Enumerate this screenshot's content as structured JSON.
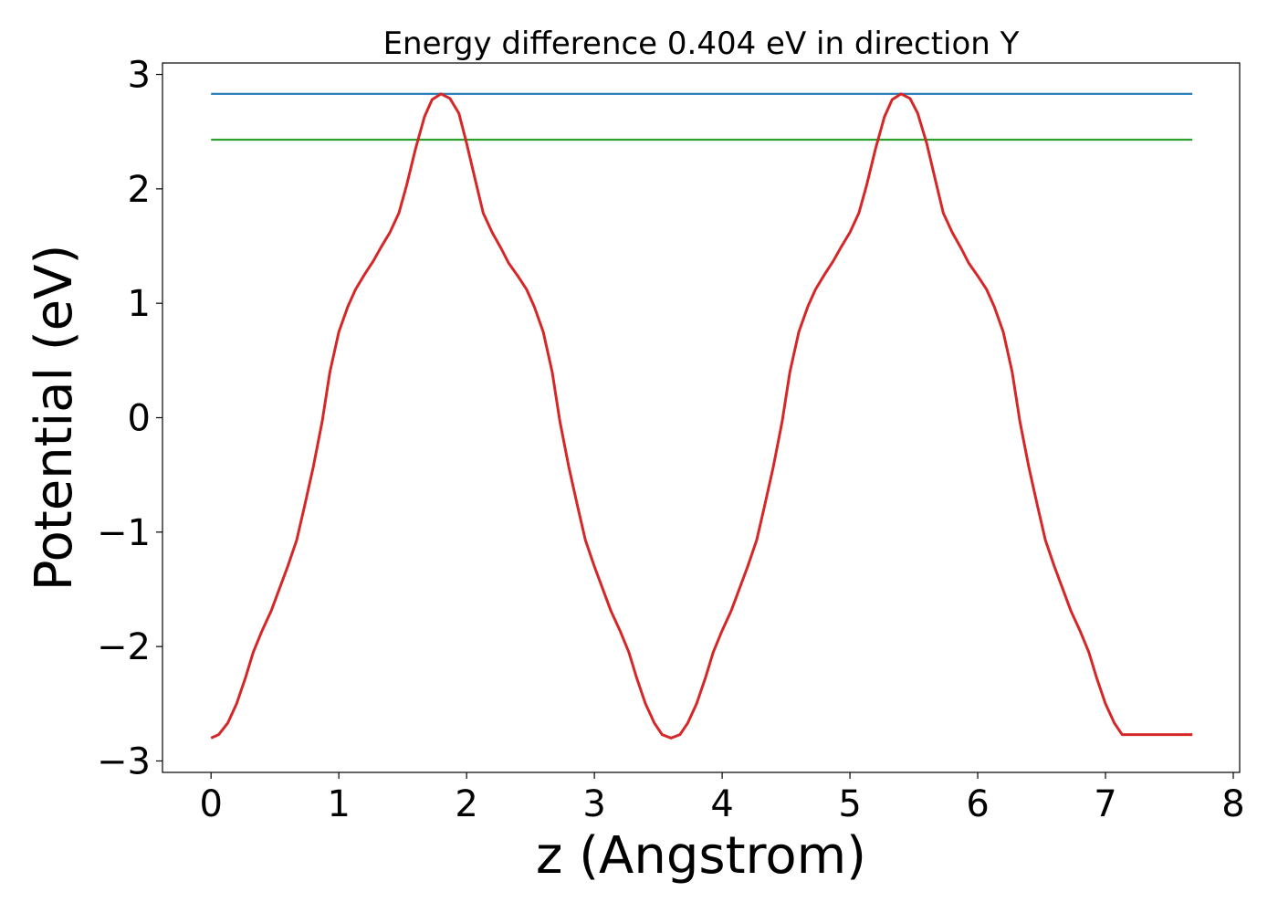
{
  "chart_data": {
    "type": "line",
    "title": "Energy difference 0.404 eV in direction Y",
    "xlabel": "z (Angstrom)",
    "ylabel": "Potential (eV)",
    "xlim": [
      -0.38,
      8.05
    ],
    "ylim": [
      -3.1,
      3.1
    ],
    "xticks": [
      0,
      1,
      2,
      3,
      4,
      5,
      6,
      7,
      8
    ],
    "xtick_labels": [
      "0",
      "1",
      "2",
      "3",
      "4",
      "5",
      "6",
      "7",
      "8"
    ],
    "yticks": [
      3,
      2,
      1,
      0,
      -1,
      -2,
      -3
    ],
    "ytick_labels": [
      "3",
      "2",
      "1",
      "0",
      "−1",
      "−2",
      "−3"
    ],
    "grid": false,
    "legend": "none",
    "series": [
      {
        "color": "#1f77b4",
        "x": [
          0,
          7.68
        ],
        "y": [
          2.83,
          2.83
        ]
      },
      {
        "color": "#2ca02c",
        "x": [
          0,
          7.68
        ],
        "y": [
          2.43,
          2.43
        ]
      },
      {
        "color": "#d62728",
        "x": [
          0,
          0.06,
          0.13,
          0.2,
          0.27,
          0.33,
          0.4,
          0.47,
          0.53,
          0.6,
          0.67,
          0.73,
          0.8,
          0.87,
          0.93,
          1.0,
          1.07,
          1.13,
          1.2,
          1.27,
          1.33,
          1.4,
          1.47,
          1.53,
          1.6,
          1.67,
          1.73,
          1.8,
          1.87,
          1.94,
          2.0,
          2.07,
          2.13,
          2.2,
          2.27,
          2.33,
          2.4,
          2.47,
          2.53,
          2.6,
          2.67,
          2.73,
          2.8,
          2.87,
          2.93,
          3.0,
          3.07,
          3.13,
          3.2,
          3.27,
          3.33,
          3.4,
          3.47,
          3.53,
          3.6,
          3.67,
          3.73,
          3.8,
          3.87,
          3.93,
          4.0,
          4.07,
          4.13,
          4.2,
          4.27,
          4.33,
          4.4,
          4.47,
          4.53,
          4.6,
          4.67,
          4.73,
          4.8,
          4.87,
          4.93,
          5.0,
          5.07,
          5.13,
          5.2,
          5.27,
          5.33,
          5.4,
          5.47,
          5.53,
          5.6,
          5.67,
          5.73,
          5.8,
          5.87,
          5.93,
          6.0,
          6.07,
          6.13,
          6.2,
          6.27,
          6.33,
          6.4,
          6.47,
          6.53,
          6.6,
          6.67,
          6.73,
          6.8,
          6.87,
          6.93,
          7.0,
          7.07,
          7.13,
          7.2,
          7.27,
          7.33,
          7.4,
          7.47,
          7.53,
          7.6,
          7.68
        ],
        "y": [
          -2.8,
          -2.77,
          -2.67,
          -2.5,
          -2.27,
          -2.05,
          -1.86,
          -1.69,
          -1.51,
          -1.3,
          -1.07,
          -0.78,
          -0.43,
          -0.03,
          0.4,
          0.75,
          0.97,
          1.12,
          1.25,
          1.37,
          1.49,
          1.62,
          1.79,
          2.03,
          2.35,
          2.63,
          2.78,
          2.83,
          2.79,
          2.66,
          2.4,
          2.07,
          1.79,
          1.62,
          1.48,
          1.35,
          1.24,
          1.12,
          0.97,
          0.75,
          0.4,
          -0.03,
          -0.43,
          -0.78,
          -1.07,
          -1.3,
          -1.51,
          -1.69,
          -1.86,
          -2.05,
          -2.27,
          -2.5,
          -2.67,
          -2.77,
          -2.8,
          -2.77,
          -2.67,
          -2.5,
          -2.27,
          -2.05,
          -1.86,
          -1.69,
          -1.51,
          -1.3,
          -1.07,
          -0.78,
          -0.43,
          -0.03,
          0.4,
          0.75,
          0.97,
          1.12,
          1.25,
          1.37,
          1.49,
          1.62,
          1.79,
          2.03,
          2.35,
          2.63,
          2.78,
          2.83,
          2.79,
          2.66,
          2.4,
          2.07,
          1.79,
          1.62,
          1.48,
          1.35,
          1.24,
          1.12,
          0.97,
          0.75,
          0.4,
          -0.03,
          -0.43,
          -0.78,
          -1.07,
          -1.3,
          -1.51,
          -1.69,
          -1.86,
          -2.05,
          -2.27,
          -2.5,
          -2.67,
          -2.77,
          -2.77,
          -2.77,
          -2.77,
          -2.77,
          -2.77,
          -2.77,
          -2.77,
          -2.77
        ]
      }
    ]
  }
}
